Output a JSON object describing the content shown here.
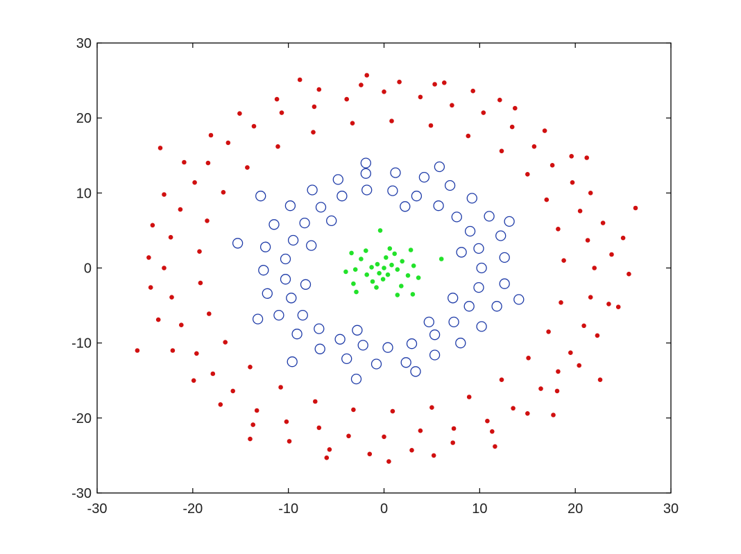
{
  "chart_data": {
    "type": "scatter",
    "title": "",
    "xlabel": "",
    "ylabel": "",
    "xlim": [
      -30,
      30
    ],
    "ylim": [
      -30,
      30
    ],
    "xticks": [
      -30,
      -20,
      -10,
      0,
      10,
      20,
      30
    ],
    "yticks": [
      -30,
      -20,
      -10,
      0,
      10,
      20,
      30
    ],
    "xtick_labels": [
      "-30",
      "-20",
      "-10",
      "0",
      "10",
      "20",
      "30"
    ],
    "ytick_labels": [
      "-30",
      "-20",
      "-10",
      "0",
      "10",
      "20",
      "30"
    ],
    "grid": false,
    "legend": "none",
    "series": [
      {
        "marker": "dot",
        "color": "#d01010",
        "points": [
          [
            22.0,
            0.0
          ],
          [
            21.3,
            3.7
          ],
          [
            20.5,
            7.6
          ],
          [
            19.7,
            11.4
          ],
          [
            17.6,
            13.7
          ],
          [
            15.7,
            16.2
          ],
          [
            13.4,
            18.8
          ],
          [
            10.4,
            20.7
          ],
          [
            7.1,
            21.7
          ],
          [
            3.8,
            22.8
          ],
          [
            0.0,
            23.5
          ],
          [
            -3.9,
            22.5
          ],
          [
            -7.3,
            21.5
          ],
          [
            -10.7,
            20.7
          ],
          [
            -13.6,
            18.9
          ],
          [
            -16.3,
            16.7
          ],
          [
            -18.4,
            14.0
          ],
          [
            -19.8,
            11.4
          ],
          [
            -21.3,
            7.8
          ],
          [
            -22.3,
            4.1
          ],
          [
            -23.0,
            0.0
          ],
          [
            -22.2,
            -3.9
          ],
          [
            -21.2,
            -7.6
          ],
          [
            -19.6,
            -11.4
          ],
          [
            -17.9,
            -14.1
          ],
          [
            -15.8,
            -16.4
          ],
          [
            -13.3,
            -19.0
          ],
          [
            -10.2,
            -20.5
          ],
          [
            -6.8,
            -21.3
          ],
          [
            -3.7,
            -22.4
          ],
          [
            0.0,
            -22.5
          ],
          [
            3.8,
            -21.7
          ],
          [
            7.3,
            -21.4
          ],
          [
            10.8,
            -20.4
          ],
          [
            13.5,
            -18.7
          ],
          [
            16.4,
            -16.1
          ],
          [
            18.2,
            -13.8
          ],
          [
            19.5,
            -11.3
          ],
          [
            20.9,
            -7.7
          ],
          [
            21.6,
            -3.9
          ],
          [
            23.8,
            1.8
          ],
          [
            22.9,
            6.0
          ],
          [
            21.6,
            10.0
          ],
          [
            19.6,
            14.9
          ],
          [
            16.8,
            18.3
          ],
          [
            13.7,
            21.3
          ],
          [
            9.3,
            23.6
          ],
          [
            5.3,
            24.5
          ],
          [
            1.6,
            24.8
          ],
          [
            -2.4,
            24.4
          ],
          [
            -6.8,
            23.8
          ],
          [
            -11.2,
            22.5
          ],
          [
            -15.1,
            20.6
          ],
          [
            -18.1,
            17.7
          ],
          [
            -20.9,
            14.1
          ],
          [
            -23.0,
            9.8
          ],
          [
            -24.2,
            5.7
          ],
          [
            -24.6,
            1.4
          ],
          [
            -24.4,
            -2.6
          ],
          [
            -23.6,
            -6.9
          ],
          [
            -22.1,
            -11.0
          ],
          [
            -19.9,
            -15.0
          ],
          [
            -17.1,
            -18.2
          ],
          [
            -13.7,
            -20.9
          ],
          [
            -9.9,
            -23.1
          ],
          [
            -5.7,
            -24.2
          ],
          [
            -1.5,
            -24.8
          ],
          [
            2.9,
            -24.3
          ],
          [
            7.2,
            -23.3
          ],
          [
            11.3,
            -21.8
          ],
          [
            15.0,
            -19.4
          ],
          [
            18.1,
            -16.4
          ],
          [
            20.4,
            -13.0
          ],
          [
            22.3,
            -9.0
          ],
          [
            23.5,
            -4.8
          ],
          [
            18.8,
            1.0
          ],
          [
            18.2,
            5.2
          ],
          [
            17.0,
            9.1
          ],
          [
            15.0,
            12.5
          ],
          [
            12.3,
            15.6
          ],
          [
            8.8,
            17.6
          ],
          [
            4.9,
            19.0
          ],
          [
            0.8,
            19.6
          ],
          [
            -3.3,
            19.3
          ],
          [
            -7.4,
            18.1
          ],
          [
            -11.1,
            16.2
          ],
          [
            -14.3,
            13.4
          ],
          [
            -16.8,
            10.1
          ],
          [
            -18.5,
            6.3
          ],
          [
            -19.3,
            2.2
          ],
          [
            -19.2,
            -2.0
          ],
          [
            -18.3,
            -6.1
          ],
          [
            -16.6,
            -9.9
          ],
          [
            -14.0,
            -13.2
          ],
          [
            -10.8,
            -15.9
          ],
          [
            -7.2,
            -17.8
          ],
          [
            -3.2,
            -18.9
          ],
          [
            0.9,
            -19.1
          ],
          [
            5.0,
            -18.6
          ],
          [
            8.9,
            -17.2
          ],
          [
            12.3,
            -14.9
          ],
          [
            15.1,
            -12.0
          ],
          [
            17.2,
            -8.5
          ],
          [
            18.5,
            -4.6
          ],
          [
            25.6,
            -0.8
          ],
          [
            24.5,
            -5.2
          ],
          [
            25.0,
            4.0
          ],
          [
            21.2,
            14.7
          ],
          [
            -25.8,
            -11.0
          ],
          [
            -23.4,
            16.0
          ],
          [
            -14.0,
            -22.8
          ],
          [
            -6.0,
            -25.3
          ],
          [
            0.5,
            -25.8
          ],
          [
            5.2,
            -25.0
          ],
          [
            11.6,
            -23.8
          ],
          [
            17.7,
            -19.6
          ],
          [
            22.6,
            -14.9
          ],
          [
            12.1,
            22.4
          ],
          [
            -8.8,
            25.1
          ],
          [
            -1.8,
            25.7
          ],
          [
            6.3,
            24.7
          ],
          [
            26.3,
            8.0
          ]
        ]
      },
      {
        "marker": "open-circle",
        "color": "#1e3ba8",
        "points": [
          [
            10.2,
            0.0
          ],
          [
            9.9,
            2.6
          ],
          [
            9.0,
            4.9
          ],
          [
            7.6,
            6.8
          ],
          [
            5.7,
            8.3
          ],
          [
            3.4,
            9.6
          ],
          [
            0.9,
            10.3
          ],
          [
            -1.8,
            10.4
          ],
          [
            -4.4,
            9.6
          ],
          [
            -6.6,
            8.1
          ],
          [
            -8.3,
            6.0
          ],
          [
            -9.5,
            3.7
          ],
          [
            -10.3,
            1.2
          ],
          [
            -10.3,
            -1.5
          ],
          [
            -9.7,
            -4.0
          ],
          [
            -8.5,
            -6.3
          ],
          [
            -6.8,
            -8.1
          ],
          [
            -4.6,
            -9.5
          ],
          [
            -2.2,
            -10.3
          ],
          [
            0.4,
            -10.6
          ],
          [
            2.9,
            -10.1
          ],
          [
            5.3,
            -8.9
          ],
          [
            7.3,
            -7.2
          ],
          [
            8.9,
            -5.1
          ],
          [
            9.9,
            -2.6
          ],
          [
            12.6,
            1.4
          ],
          [
            12.2,
            4.3
          ],
          [
            11.0,
            6.9
          ],
          [
            9.2,
            9.3
          ],
          [
            6.9,
            11.0
          ],
          [
            4.2,
            12.1
          ],
          [
            1.2,
            12.7
          ],
          [
            -1.9,
            12.6
          ],
          [
            -4.8,
            11.8
          ],
          [
            -7.5,
            10.4
          ],
          [
            -9.8,
            8.3
          ],
          [
            -11.5,
            5.8
          ],
          [
            -12.4,
            2.8
          ],
          [
            -12.6,
            -0.3
          ],
          [
            -12.2,
            -3.4
          ],
          [
            -11.0,
            -6.3
          ],
          [
            -9.1,
            -8.8
          ],
          [
            -6.7,
            -10.8
          ],
          [
            -3.9,
            -12.1
          ],
          [
            -0.8,
            -12.8
          ],
          [
            2.3,
            -12.6
          ],
          [
            5.3,
            -11.6
          ],
          [
            8.0,
            -10.0
          ],
          [
            10.2,
            -7.8
          ],
          [
            11.8,
            -5.1
          ],
          [
            12.6,
            -2.1
          ],
          [
            8.1,
            2.1
          ],
          [
            7.2,
            -4.0
          ],
          [
            -7.6,
            3.0
          ],
          [
            -8.2,
            -2.2
          ],
          [
            2.2,
            8.2
          ],
          [
            -2.8,
            -8.3
          ],
          [
            4.7,
            -7.2
          ],
          [
            -5.5,
            6.3
          ],
          [
            -15.3,
            3.3
          ],
          [
            -13.2,
            -6.8
          ],
          [
            14.1,
            -4.2
          ],
          [
            13.1,
            6.2
          ],
          [
            -2.9,
            -14.8
          ],
          [
            -1.9,
            14.0
          ],
          [
            3.3,
            -13.8
          ],
          [
            5.8,
            13.5
          ],
          [
            -12.9,
            9.6
          ],
          [
            -9.6,
            -12.5
          ]
        ]
      },
      {
        "marker": "dot",
        "color": "#22e22a",
        "points": [
          [
            0.0,
            0.0
          ],
          [
            0.8,
            0.4
          ],
          [
            -0.7,
            0.5
          ],
          [
            0.4,
            -0.9
          ],
          [
            -0.5,
            -0.7
          ],
          [
            1.4,
            -0.2
          ],
          [
            -1.3,
            0.1
          ],
          [
            0.2,
            1.4
          ],
          [
            -0.1,
            -1.5
          ],
          [
            1.9,
            0.9
          ],
          [
            -1.8,
            -0.9
          ],
          [
            1.1,
            1.9
          ],
          [
            -1.2,
            -1.8
          ],
          [
            2.5,
            -1.0
          ],
          [
            -2.4,
            1.2
          ],
          [
            0.6,
            2.6
          ],
          [
            -0.8,
            -2.6
          ],
          [
            3.1,
            0.3
          ],
          [
            -3.0,
            -0.2
          ],
          [
            1.8,
            -2.4
          ],
          [
            -1.9,
            2.3
          ],
          [
            -3.2,
            -2.1
          ],
          [
            3.6,
            -1.3
          ],
          [
            -0.4,
            5.0
          ],
          [
            6.0,
            1.2
          ],
          [
            -3.4,
            2.0
          ],
          [
            -2.9,
            -3.2
          ],
          [
            3.0,
            -3.5
          ],
          [
            -4.0,
            -0.5
          ],
          [
            1.4,
            -3.6
          ],
          [
            2.8,
            2.4
          ]
        ]
      }
    ]
  }
}
